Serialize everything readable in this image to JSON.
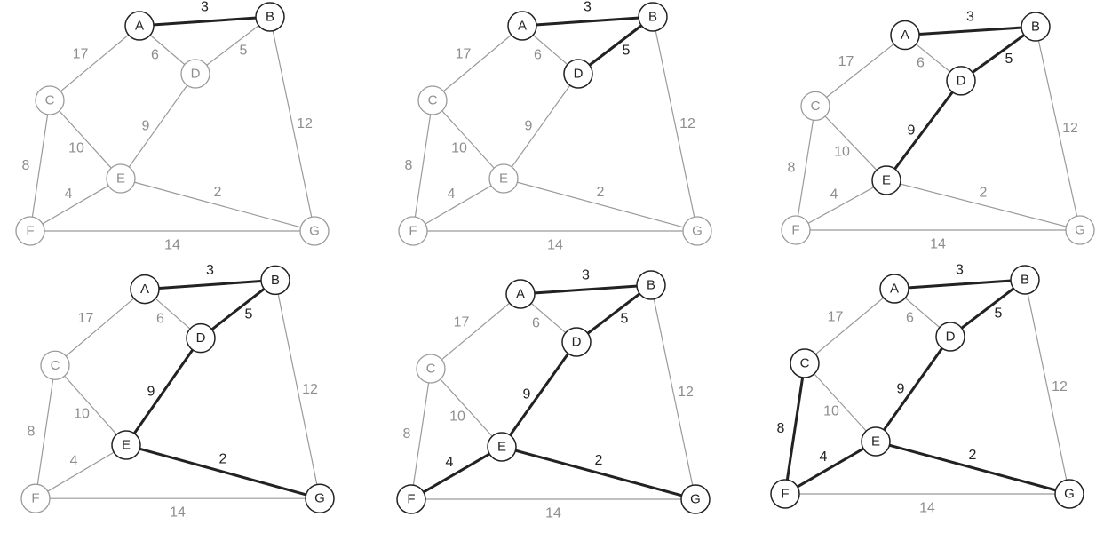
{
  "graph": {
    "nodes": [
      "A",
      "B",
      "C",
      "D",
      "E",
      "F",
      "G"
    ],
    "edges": [
      {
        "from": "A",
        "to": "B",
        "weight": "3"
      },
      {
        "from": "A",
        "to": "C",
        "weight": "17"
      },
      {
        "from": "A",
        "to": "D",
        "weight": "6"
      },
      {
        "from": "B",
        "to": "D",
        "weight": "5"
      },
      {
        "from": "B",
        "to": "G",
        "weight": "12"
      },
      {
        "from": "C",
        "to": "E",
        "weight": "10"
      },
      {
        "from": "C",
        "to": "F",
        "weight": "8"
      },
      {
        "from": "D",
        "to": "E",
        "weight": "9"
      },
      {
        "from": "E",
        "to": "F",
        "weight": "4"
      },
      {
        "from": "E",
        "to": "G",
        "weight": "2"
      },
      {
        "from": "F",
        "to": "G",
        "weight": "14"
      }
    ]
  },
  "panels": [
    {
      "bold_edges": [
        "A-B"
      ],
      "bold_nodes": [
        "A",
        "B"
      ]
    },
    {
      "bold_edges": [
        "A-B",
        "B-D"
      ],
      "bold_nodes": [
        "A",
        "B",
        "D"
      ]
    },
    {
      "bold_edges": [
        "A-B",
        "B-D",
        "D-E"
      ],
      "bold_nodes": [
        "A",
        "B",
        "D",
        "E"
      ]
    },
    {
      "bold_edges": [
        "A-B",
        "B-D",
        "D-E",
        "E-G"
      ],
      "bold_nodes": [
        "A",
        "B",
        "D",
        "E",
        "G"
      ]
    },
    {
      "bold_edges": [
        "A-B",
        "B-D",
        "D-E",
        "E-G",
        "E-F"
      ],
      "bold_nodes": [
        "A",
        "B",
        "D",
        "E",
        "F",
        "G"
      ]
    },
    {
      "bold_edges": [
        "A-B",
        "B-D",
        "D-E",
        "E-G",
        "E-F",
        "C-F"
      ],
      "bold_nodes": [
        "A",
        "B",
        "C",
        "D",
        "E",
        "F",
        "G"
      ]
    }
  ]
}
